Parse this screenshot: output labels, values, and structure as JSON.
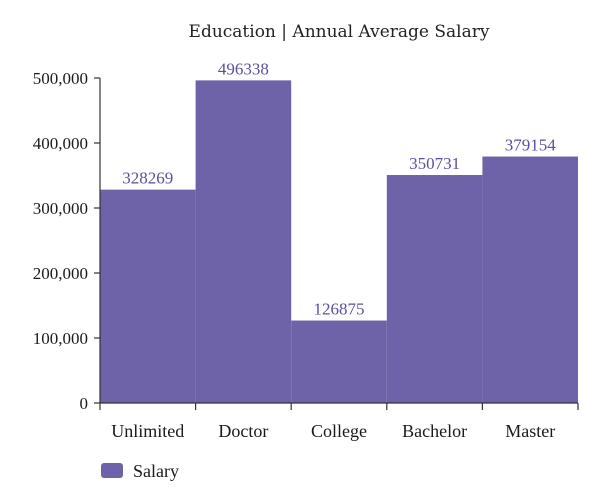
{
  "colors": {
    "bar": "#6e63a8",
    "label": "#5a4fa0",
    "axis": "#333333"
  },
  "chart_data": {
    "type": "bar",
    "title": "Education | Annual Average Salary",
    "categories": [
      "Unlimited",
      "Doctor",
      "College",
      "Bachelor",
      "Master"
    ],
    "series": [
      {
        "name": "Salary",
        "values": [
          328269,
          496338,
          126875,
          350731,
          379154
        ]
      }
    ],
    "data_labels": [
      "328269",
      "496338",
      "126875",
      "350731",
      "379154"
    ],
    "ylim": [
      0,
      500000
    ],
    "yticks": [
      0,
      100000,
      200000,
      300000,
      400000,
      500000
    ],
    "ytick_labels": [
      "0",
      "100,000",
      "200,000",
      "300,000",
      "400,000",
      "500,000"
    ],
    "xlabel": "",
    "ylabel": "",
    "grid": false,
    "legend": {
      "position": "bottom-left",
      "entries": [
        "Salary"
      ]
    }
  }
}
